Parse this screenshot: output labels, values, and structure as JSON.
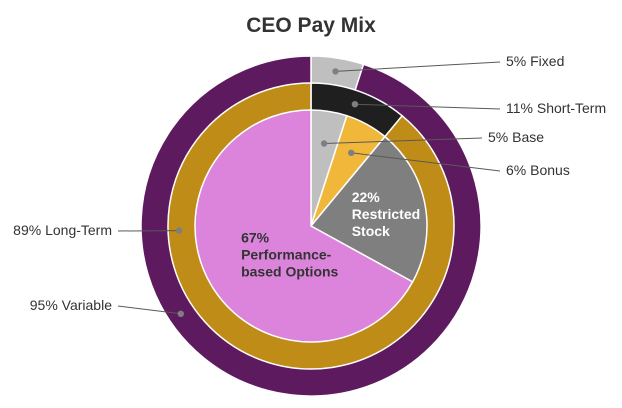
{
  "chart_data": {
    "type": "pie",
    "title": "CEO Pay Mix",
    "rings": [
      {
        "name": "outer",
        "slices": [
          {
            "label": "5% Fixed",
            "value": 5,
            "color": "#bfbfbf"
          },
          {
            "label": "95% Variable",
            "value": 95,
            "color": "#5e1a5e"
          }
        ]
      },
      {
        "name": "middle",
        "slices": [
          {
            "label": "11% Short-Term",
            "value": 11,
            "color": "#1f1f1f"
          },
          {
            "label": "89% Long-Term",
            "value": 89,
            "color": "#bf8c17"
          }
        ]
      },
      {
        "name": "inner",
        "slices": [
          {
            "label": "5% Base",
            "value": 5,
            "color": "#bfbfbf"
          },
          {
            "label": "6% Bonus",
            "value": 6,
            "color": "#f0b73b"
          },
          {
            "label": "22% Restricted Stock",
            "value": 22,
            "color": "#7f7f7f",
            "inside": [
              "22%",
              "Restricted",
              "Stock"
            ],
            "inside_color": "#ffffff"
          },
          {
            "label": "67% Performance-based Options",
            "value": 67,
            "color": "#dc84dc",
            "inside": [
              "67%",
              "Performance-",
              "based Options"
            ],
            "inside_color": "#333333"
          }
        ]
      }
    ]
  }
}
